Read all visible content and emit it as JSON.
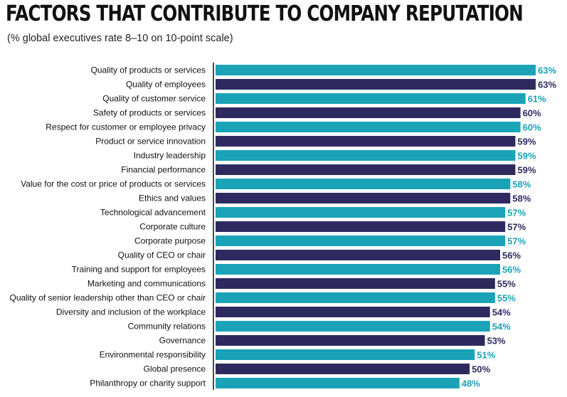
{
  "title": "FACTORS THAT CONTRIBUTE TO COMPANY REPUTATION",
  "subtitle": "(% global executives rate 8–10 on 10-point scale)",
  "colors": {
    "teal": "#1aa3b7",
    "navy": "#2e2a60",
    "axis": "#111111",
    "text": "#111111"
  },
  "chart_data": {
    "type": "bar",
    "orientation": "horizontal",
    "title": "FACTORS THAT CONTRIBUTE TO COMPANY REPUTATION",
    "subtitle": "(% global executives rate 8–10 on 10-point scale)",
    "xlim": [
      0,
      63
    ],
    "categories": [
      "Quality of products or services",
      "Quality of employees",
      "Quality of customer service",
      "Safety of products or services",
      "Respect for customer or employee privacy",
      "Product or service innovation",
      "Industry leadership",
      "Financial performance",
      "Value for the cost or price of products or services",
      "Ethics and values",
      "Technological advancement",
      "Corporate culture",
      "Corporate purpose",
      "Quality of CEO or chair",
      "Training and support for employees",
      "Marketing and communications",
      "Quality of senior leadership other than CEO or chair",
      "Diversity and inclusion of the workplace",
      "Community relations",
      "Governance",
      "Environmental responsibility",
      "Global presence",
      "Philanthropy or charity support"
    ],
    "values": [
      63,
      63,
      61,
      60,
      60,
      59,
      59,
      59,
      58,
      58,
      57,
      57,
      57,
      56,
      56,
      55,
      55,
      54,
      54,
      53,
      51,
      50,
      48
    ],
    "value_labels": [
      "63%",
      "63%",
      "61%",
      "60%",
      "60%",
      "59%",
      "59%",
      "59%",
      "58%",
      "58%",
      "57%",
      "57%",
      "57%",
      "56%",
      "56%",
      "55%",
      "55%",
      "54%",
      "54%",
      "53%",
      "51%",
      "50%",
      "48%"
    ],
    "bar_colors": [
      "#1aa3b7",
      "#2e2a60",
      "#1aa3b7",
      "#2e2a60",
      "#1aa3b7",
      "#2e2a60",
      "#1aa3b7",
      "#2e2a60",
      "#1aa3b7",
      "#2e2a60",
      "#1aa3b7",
      "#2e2a60",
      "#1aa3b7",
      "#2e2a60",
      "#1aa3b7",
      "#2e2a60",
      "#1aa3b7",
      "#2e2a60",
      "#1aa3b7",
      "#2e2a60",
      "#1aa3b7",
      "#2e2a60",
      "#1aa3b7"
    ],
    "grid": false,
    "legend": "none"
  }
}
